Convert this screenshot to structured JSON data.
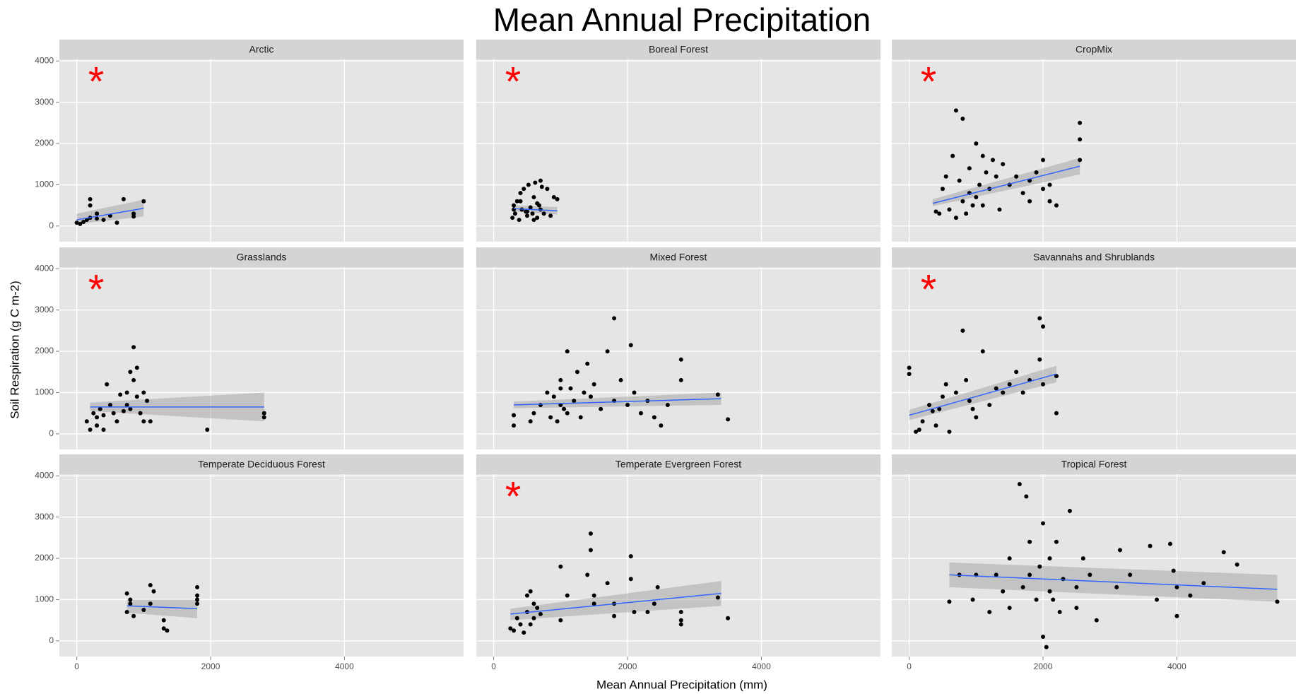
{
  "title": "Mean Annual Precipitation",
  "x_label": "Mean Annual Precipitation (mm)",
  "y_label": "Soil Respiration (g C m-2)",
  "chart_data": [
    {
      "type": "scatter",
      "title": "Arctic",
      "annotation": "*",
      "color": "#000000",
      "grid": true,
      "xlim": [
        -260,
        5780
      ],
      "ylim": [
        -380,
        4040
      ],
      "xticks": [
        0,
        2000,
        4000
      ],
      "yticks": [
        0,
        1000,
        2000,
        3000,
        4000
      ],
      "x": [
        0,
        50,
        100,
        150,
        200,
        200,
        200,
        300,
        300,
        400,
        500,
        600,
        700,
        850,
        850,
        1000
      ],
      "y": [
        80,
        50,
        100,
        150,
        200,
        500,
        650,
        300,
        180,
        150,
        250,
        80,
        650,
        300,
        230,
        600
      ],
      "fit": {
        "color": "#3366ff",
        "x": [
          0,
          1000
        ],
        "y": [
          150,
          430
        ],
        "lower": [
          50,
          230
        ],
        "upper": [
          300,
          640
        ]
      }
    },
    {
      "type": "scatter",
      "title": "Boreal Forest",
      "annotation": "*",
      "color": "#000000",
      "grid": true,
      "xlim": [
        -260,
        5780
      ],
      "ylim": [
        -380,
        4040
      ],
      "xticks": [
        0,
        2000,
        4000
      ],
      "yticks": [
        0,
        1000,
        2000,
        3000,
        4000
      ],
      "x": [
        280,
        300,
        320,
        350,
        380,
        400,
        420,
        450,
        480,
        500,
        520,
        550,
        580,
        600,
        620,
        650,
        680,
        700,
        720,
        750,
        800,
        850,
        900,
        950,
        400,
        500,
        600,
        700,
        300,
        650
      ],
      "y": [
        200,
        500,
        300,
        600,
        150,
        800,
        400,
        900,
        350,
        250,
        1000,
        450,
        300,
        700,
        1050,
        200,
        500,
        400,
        950,
        300,
        900,
        250,
        700,
        650,
        600,
        350,
        150,
        1100,
        400,
        550
      ],
      "fit": {
        "color": "#3366ff",
        "x": [
          300,
          950
        ],
        "y": [
          420,
          370
        ],
        "lower": [
          350,
          280
        ],
        "upper": [
          500,
          460
        ]
      }
    },
    {
      "type": "scatter",
      "title": "CropMix",
      "annotation": "*",
      "color": "#000000",
      "grid": true,
      "xlim": [
        -260,
        5780
      ],
      "ylim": [
        -380,
        4040
      ],
      "xticks": [
        0,
        2000,
        4000
      ],
      "yticks": [
        0,
        1000,
        2000,
        3000,
        4000
      ],
      "x": [
        400,
        450,
        500,
        550,
        600,
        650,
        700,
        700,
        750,
        800,
        800,
        850,
        900,
        900,
        950,
        1000,
        1000,
        1050,
        1100,
        1100,
        1150,
        1200,
        1250,
        1300,
        1350,
        1400,
        1500,
        1600,
        1700,
        1800,
        1800,
        1900,
        2000,
        2000,
        2100,
        2100,
        2200,
        2550,
        2550,
        2550
      ],
      "y": [
        350,
        300,
        900,
        1200,
        400,
        1700,
        200,
        2800,
        1100,
        600,
        2600,
        300,
        1400,
        800,
        500,
        2000,
        700,
        1000,
        1700,
        500,
        1300,
        900,
        1600,
        1200,
        400,
        1500,
        1000,
        1200,
        800,
        1100,
        600,
        1300,
        1600,
        900,
        1000,
        600,
        500,
        2500,
        2100,
        1600
      ],
      "fit": {
        "color": "#3366ff",
        "x": [
          350,
          2550
        ],
        "y": [
          550,
          1450
        ],
        "lower": [
          480,
          1250
        ],
        "upper": [
          650,
          1650
        ]
      }
    },
    {
      "type": "scatter",
      "title": "Grasslands",
      "annotation": "*",
      "color": "#000000",
      "grid": true,
      "xlim": [
        -260,
        5780
      ],
      "ylim": [
        -380,
        4040
      ],
      "xticks": [
        0,
        2000,
        4000
      ],
      "yticks": [
        0,
        1000,
        2000,
        3000,
        4000
      ],
      "x": [
        150,
        200,
        250,
        300,
        300,
        350,
        400,
        400,
        450,
        500,
        550,
        600,
        650,
        700,
        750,
        750,
        800,
        800,
        850,
        850,
        900,
        900,
        950,
        1000,
        1050,
        1100,
        1000,
        1950,
        2800,
        2800
      ],
      "y": [
        300,
        100,
        500,
        200,
        400,
        600,
        100,
        450,
        1200,
        700,
        500,
        300,
        950,
        550,
        1000,
        700,
        1500,
        600,
        2100,
        1300,
        900,
        1600,
        500,
        300,
        800,
        300,
        1000,
        100,
        500,
        400
      ],
      "fit": {
        "color": "#3366ff",
        "x": [
          200,
          2800
        ],
        "y": [
          650,
          650
        ],
        "lower": [
          550,
          300
        ],
        "upper": [
          760,
          1000
        ]
      }
    },
    {
      "type": "scatter",
      "title": "Mixed Forest",
      "color": "#000000",
      "grid": true,
      "xlim": [
        -260,
        5780
      ],
      "ylim": [
        -380,
        4040
      ],
      "xticks": [
        0,
        2000,
        4000
      ],
      "yticks": [
        0,
        1000,
        2000,
        3000,
        4000
      ],
      "x": [
        300,
        300,
        550,
        600,
        700,
        800,
        850,
        900,
        950,
        1000,
        1000,
        1050,
        1100,
        1100,
        1150,
        1200,
        1250,
        1300,
        1350,
        1400,
        1450,
        1500,
        1600,
        1700,
        1800,
        1800,
        1900,
        2000,
        2050,
        2100,
        2200,
        2300,
        2400,
        2500,
        2600,
        2800,
        2800,
        3350,
        3500,
        1000
      ],
      "y": [
        200,
        450,
        300,
        500,
        700,
        1000,
        400,
        900,
        300,
        1300,
        700,
        600,
        2000,
        500,
        1100,
        800,
        1500,
        400,
        1000,
        1700,
        900,
        1200,
        600,
        2000,
        2800,
        800,
        1300,
        700,
        2150,
        1000,
        500,
        800,
        400,
        200,
        700,
        1800,
        1300,
        950,
        350,
        1100
      ],
      "fit": {
        "color": "#3366ff",
        "x": [
          300,
          3400
        ],
        "y": [
          700,
          850
        ],
        "lower": [
          620,
          700
        ],
        "upper": [
          780,
          1000
        ]
      }
    },
    {
      "type": "scatter",
      "title": "Savannahs and Shrublands",
      "annotation": "*",
      "color": "#000000",
      "grid": true,
      "xlim": [
        -260,
        5780
      ],
      "ylim": [
        -380,
        4040
      ],
      "xticks": [
        0,
        2000,
        4000
      ],
      "yticks": [
        0,
        1000,
        2000,
        3000,
        4000
      ],
      "x": [
        0,
        0,
        100,
        150,
        200,
        300,
        350,
        400,
        450,
        500,
        550,
        600,
        700,
        800,
        850,
        900,
        950,
        1000,
        1100,
        1200,
        1300,
        1400,
        1500,
        1600,
        1700,
        1800,
        1950,
        1950,
        2000,
        2000,
        2200,
        2200
      ],
      "y": [
        1600,
        1450,
        50,
        100,
        300,
        700,
        550,
        200,
        600,
        900,
        1200,
        50,
        1000,
        2500,
        1300,
        800,
        600,
        400,
        2000,
        700,
        1100,
        1000,
        1200,
        1500,
        1000,
        1300,
        2800,
        1800,
        2600,
        1200,
        500,
        1400
      ],
      "fit": {
        "color": "#3366ff",
        "x": [
          0,
          2200
        ],
        "y": [
          450,
          1450
        ],
        "lower": [
          330,
          1250
        ],
        "upper": [
          580,
          1650
        ]
      }
    },
    {
      "type": "scatter",
      "title": "Temperate Deciduous Forest",
      "color": "#000000",
      "grid": true,
      "xlim": [
        -260,
        5780
      ],
      "ylim": [
        -380,
        4040
      ],
      "xticks": [
        0,
        2000,
        4000
      ],
      "yticks": [
        0,
        1000,
        2000,
        3000,
        4000
      ],
      "x": [
        750,
        750,
        800,
        800,
        850,
        1000,
        1100,
        1100,
        1150,
        1300,
        1300,
        1350,
        1800,
        1800,
        1800,
        1800
      ],
      "y": [
        1150,
        700,
        1000,
        900,
        600,
        750,
        1350,
        900,
        1200,
        500,
        300,
        250,
        1300,
        1100,
        1000,
        900
      ],
      "fit": {
        "color": "#3366ff",
        "x": [
          750,
          1800
        ],
        "y": [
          850,
          780
        ],
        "lower": [
          680,
          550
        ],
        "upper": [
          1000,
          1000
        ]
      }
    },
    {
      "type": "scatter",
      "title": "Temperate Evergreen Forest",
      "annotation": "*",
      "color": "#000000",
      "grid": true,
      "xlim": [
        -260,
        5780
      ],
      "ylim": [
        -380,
        4040
      ],
      "xticks": [
        0,
        2000,
        4000
      ],
      "yticks": [
        0,
        1000,
        2000,
        3000,
        4000
      ],
      "x": [
        250,
        300,
        350,
        400,
        450,
        500,
        500,
        550,
        550,
        600,
        600,
        650,
        700,
        1000,
        1000,
        1100,
        1400,
        1450,
        1450,
        1500,
        1500,
        1700,
        1800,
        1800,
        2050,
        2050,
        2100,
        2300,
        2400,
        2450,
        2800,
        2800,
        2800,
        3350,
        3500
      ],
      "y": [
        300,
        250,
        550,
        400,
        200,
        1100,
        700,
        1200,
        400,
        900,
        550,
        800,
        650,
        1800,
        500,
        1100,
        1600,
        2600,
        2200,
        900,
        1100,
        1400,
        900,
        600,
        2050,
        1500,
        700,
        700,
        900,
        1300,
        700,
        500,
        400,
        1050,
        550
      ],
      "fit": {
        "color": "#3366ff",
        "x": [
          250,
          3400
        ],
        "y": [
          650,
          1150
        ],
        "lower": [
          500,
          850
        ],
        "upper": [
          780,
          1450
        ]
      }
    },
    {
      "type": "scatter",
      "title": "Tropical Forest",
      "color": "#000000",
      "grid": true,
      "xlim": [
        -260,
        5780
      ],
      "ylim": [
        -380,
        4040
      ],
      "xticks": [
        0,
        2000,
        4000
      ],
      "yticks": [
        0,
        1000,
        2000,
        3000,
        4000
      ],
      "x": [
        600,
        750,
        950,
        1000,
        1200,
        1300,
        1400,
        1500,
        1500,
        1650,
        1700,
        1750,
        1800,
        1800,
        1900,
        1950,
        2000,
        2000,
        2050,
        2100,
        2100,
        2150,
        2200,
        2250,
        2300,
        2400,
        2500,
        2500,
        2600,
        2700,
        2800,
        3100,
        3150,
        3300,
        3600,
        3700,
        3900,
        3950,
        4000,
        4000,
        4200,
        4400,
        4700,
        4900,
        5500
      ],
      "y": [
        950,
        1600,
        1000,
        1600,
        700,
        1600,
        1200,
        800,
        2000,
        3800,
        1300,
        3500,
        2400,
        1600,
        1000,
        1800,
        2850,
        100,
        -150,
        1200,
        2000,
        1000,
        2400,
        700,
        1500,
        3150,
        800,
        1300,
        2000,
        1600,
        500,
        1300,
        2200,
        1600,
        2300,
        1000,
        2350,
        1700,
        600,
        1300,
        1100,
        1400,
        2150,
        1850,
        950
      ],
      "fit": {
        "color": "#3366ff",
        "x": [
          600,
          5500
        ],
        "y": [
          1600,
          1250
        ],
        "lower": [
          1300,
          950
        ],
        "upper": [
          1900,
          1600
        ]
      }
    }
  ]
}
